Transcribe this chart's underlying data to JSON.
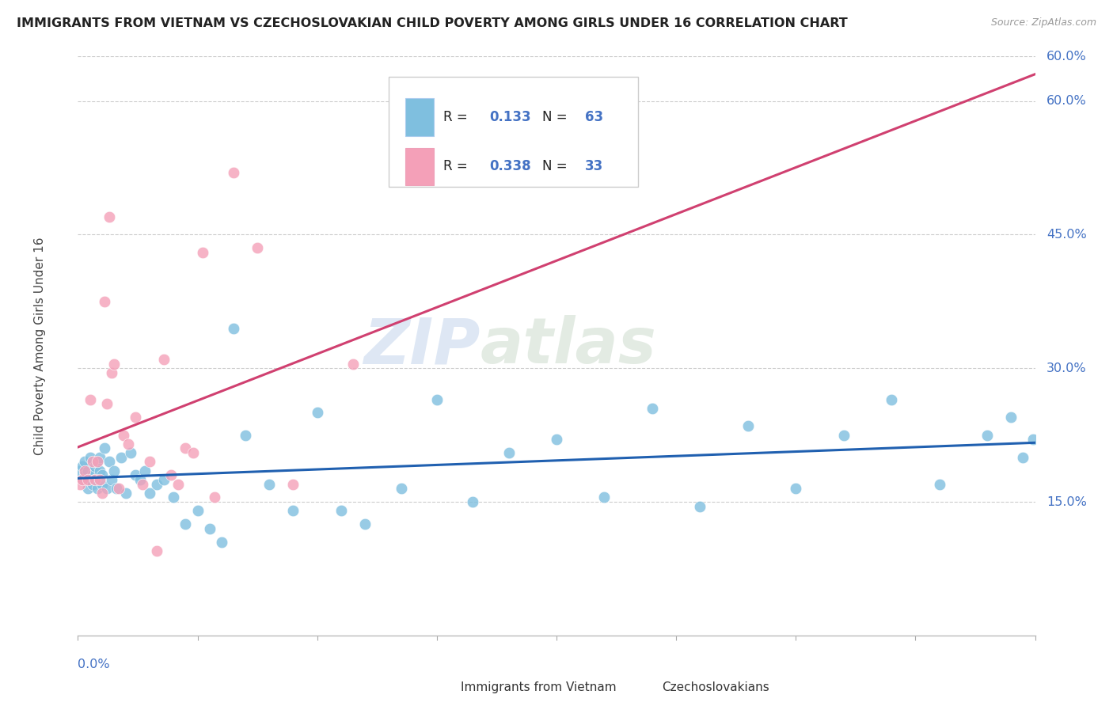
{
  "title": "IMMIGRANTS FROM VIETNAM VS CZECHOSLOVAKIAN CHILD POVERTY AMONG GIRLS UNDER 16 CORRELATION CHART",
  "source": "Source: ZipAtlas.com",
  "ylabel": "Child Poverty Among Girls Under 16",
  "xlim": [
    0.0,
    0.4
  ],
  "ylim": [
    0.0,
    0.65
  ],
  "yticks": [
    0.15,
    0.3,
    0.45,
    0.6
  ],
  "ytick_labels": [
    "15.0%",
    "30.0%",
    "45.0%",
    "60.0%"
  ],
  "xtick_minor": [
    0.05,
    0.1,
    0.15,
    0.2,
    0.25,
    0.3,
    0.35
  ],
  "watermark_zip": "ZIP",
  "watermark_atlas": "atlas",
  "legend_R1": "0.133",
  "legend_N1": "63",
  "legend_R2": "0.338",
  "legend_N2": "33",
  "blue_scatter_color": "#7fbfdf",
  "pink_scatter_color": "#f4a0b8",
  "blue_line_color": "#2060b0",
  "pink_line_color": "#d04070",
  "title_color": "#222222",
  "axis_label_color": "#4472c4",
  "background_color": "#ffffff",
  "grid_color": "#cccccc",
  "vietnam_x": [
    0.001,
    0.002,
    0.002,
    0.003,
    0.003,
    0.004,
    0.004,
    0.005,
    0.005,
    0.006,
    0.006,
    0.007,
    0.007,
    0.008,
    0.008,
    0.009,
    0.009,
    0.01,
    0.01,
    0.011,
    0.012,
    0.013,
    0.014,
    0.015,
    0.016,
    0.018,
    0.02,
    0.022,
    0.024,
    0.026,
    0.028,
    0.03,
    0.033,
    0.036,
    0.04,
    0.045,
    0.05,
    0.055,
    0.06,
    0.065,
    0.07,
    0.08,
    0.09,
    0.1,
    0.11,
    0.12,
    0.135,
    0.15,
    0.165,
    0.18,
    0.2,
    0.22,
    0.24,
    0.26,
    0.28,
    0.3,
    0.32,
    0.34,
    0.36,
    0.38,
    0.39,
    0.395,
    0.399
  ],
  "vietnam_y": [
    0.185,
    0.19,
    0.175,
    0.195,
    0.18,
    0.165,
    0.185,
    0.175,
    0.2,
    0.18,
    0.17,
    0.19,
    0.175,
    0.165,
    0.195,
    0.185,
    0.2,
    0.17,
    0.18,
    0.21,
    0.165,
    0.195,
    0.175,
    0.185,
    0.165,
    0.2,
    0.16,
    0.205,
    0.18,
    0.175,
    0.185,
    0.16,
    0.17,
    0.175,
    0.155,
    0.125,
    0.14,
    0.12,
    0.105,
    0.345,
    0.225,
    0.17,
    0.14,
    0.25,
    0.14,
    0.125,
    0.165,
    0.265,
    0.15,
    0.205,
    0.22,
    0.155,
    0.255,
    0.145,
    0.235,
    0.165,
    0.225,
    0.265,
    0.17,
    0.225,
    0.245,
    0.2,
    0.22
  ],
  "czech_x": [
    0.001,
    0.002,
    0.003,
    0.004,
    0.005,
    0.006,
    0.007,
    0.008,
    0.009,
    0.01,
    0.011,
    0.012,
    0.013,
    0.014,
    0.015,
    0.017,
    0.019,
    0.021,
    0.024,
    0.027,
    0.03,
    0.033,
    0.036,
    0.039,
    0.042,
    0.045,
    0.048,
    0.052,
    0.057,
    0.065,
    0.075,
    0.09,
    0.115
  ],
  "czech_y": [
    0.17,
    0.175,
    0.185,
    0.175,
    0.265,
    0.195,
    0.175,
    0.195,
    0.175,
    0.16,
    0.375,
    0.26,
    0.47,
    0.295,
    0.305,
    0.165,
    0.225,
    0.215,
    0.245,
    0.17,
    0.195,
    0.095,
    0.31,
    0.18,
    0.17,
    0.21,
    0.205,
    0.43,
    0.155,
    0.52,
    0.435,
    0.17,
    0.305
  ]
}
